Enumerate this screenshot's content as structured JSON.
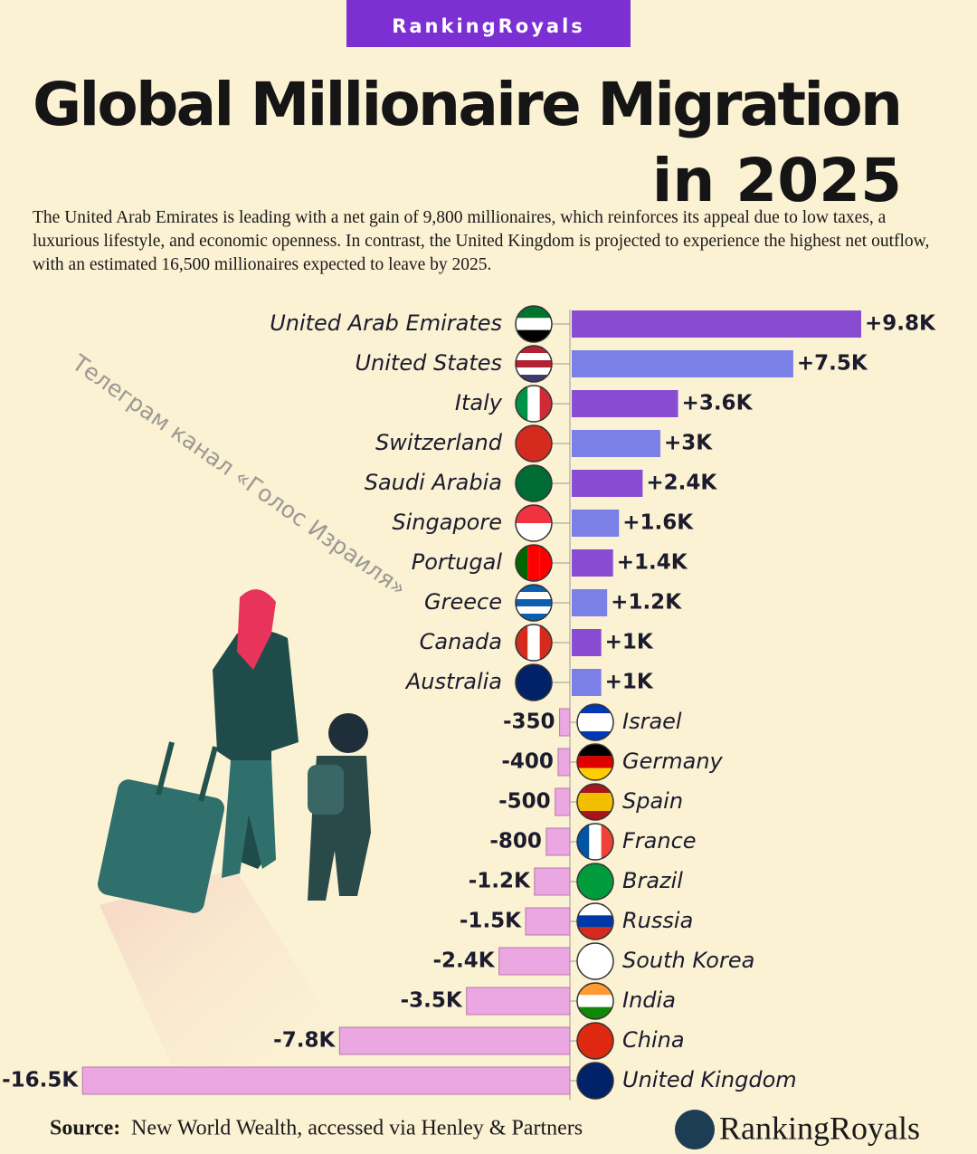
{
  "brand_badge": "RankingRoyals",
  "title_lines": [
    "Global Millionaire Migration",
    "in 2025"
  ],
  "subtitle": "The United Arab Emirates is leading with a net gain of 9,800 millionaires, which reinforces its appeal due to low taxes, a luxurious lifestyle, and economic openness. In contrast, the United Kingdom is projected to experience the highest net outflow, with an estimated 16,500 millionaires expected to leave by 2025.",
  "watermark": "Телеграм канал «Голос Израиля»",
  "chart_data": {
    "type": "bar",
    "orientation": "horizontal",
    "categories": [
      "United Arab Emirates",
      "United States",
      "Italy",
      "Switzerland",
      "Saudi Arabia",
      "Singapore",
      "Portugal",
      "Greece",
      "Canada",
      "Australia",
      "Israel",
      "Germany",
      "Spain",
      "France",
      "Brazil",
      "Russia",
      "South Korea",
      "India",
      "China",
      "United Kingdom"
    ],
    "values": [
      9800,
      7500,
      3600,
      3000,
      2400,
      1600,
      1400,
      1200,
      1000,
      1000,
      -350,
      -400,
      -500,
      -800,
      -1200,
      -1500,
      -2400,
      -3500,
      -7800,
      -16500
    ],
    "value_labels": [
      "+9.8K",
      "+7.5K",
      "+3.6K",
      "+3K",
      "+2.4K",
      "+1.6K",
      "+1.4K",
      "+1.2K",
      "+1K",
      "+1K",
      "-350",
      "-400",
      "-500",
      "-800",
      "-1.2K",
      "-1.5K",
      "-2.4K",
      "-3.5K",
      "-7.8K",
      "-16.5K"
    ],
    "gain_colors": [
      "#8a4bd3",
      "#7b80e6"
    ],
    "loss_color": "#eaa7e1"
  },
  "source_label": "Source:",
  "source_text": "New World Wealth, accessed via Henley & Partners",
  "logo_text": "RankingRoyals"
}
